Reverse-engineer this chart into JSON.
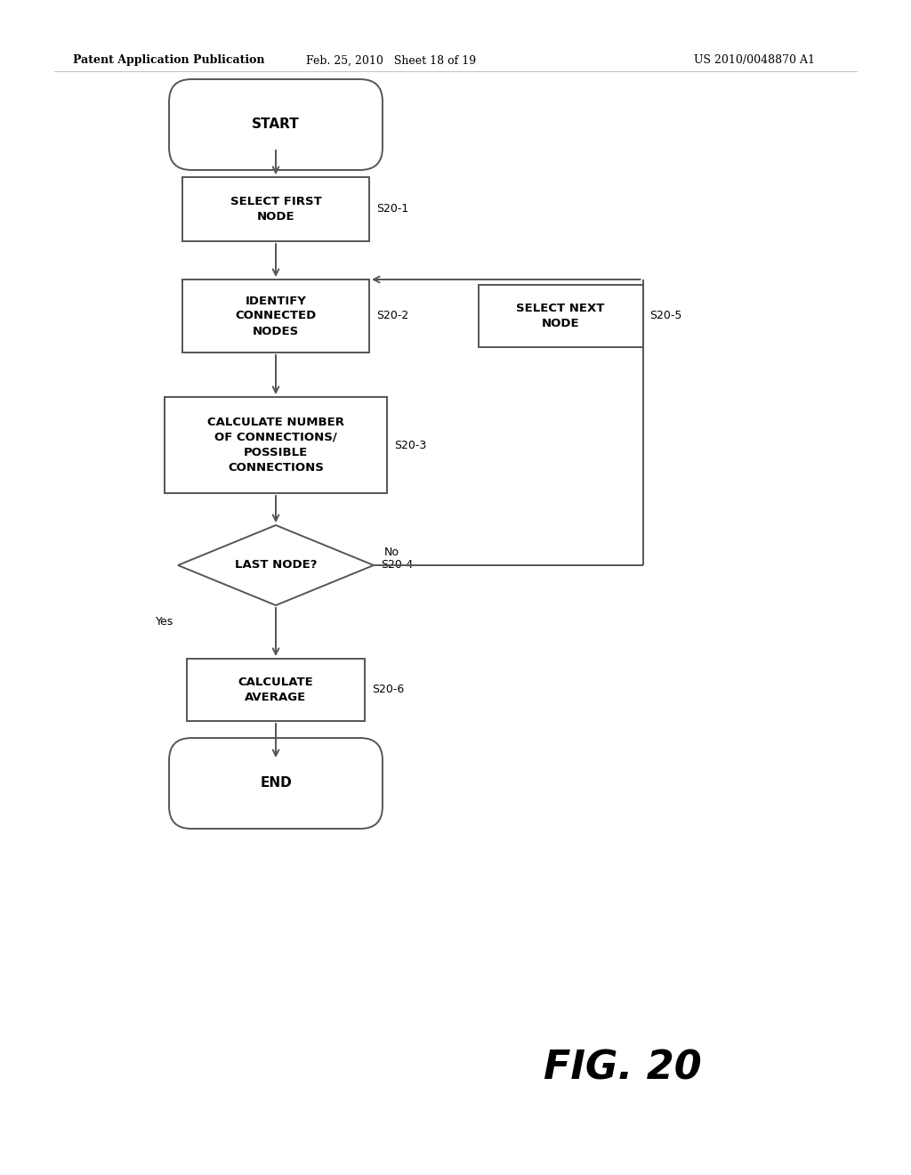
{
  "bg_color": "#ffffff",
  "header_left": "Patent Application Publication",
  "header_center": "Feb. 25, 2010   Sheet 18 of 19",
  "header_right": "US 2010/0048870 A1",
  "figure_label": "FIG. 20",
  "font_size_header": 9,
  "font_size_node": 9,
  "font_size_label": 9,
  "font_size_fig": 32
}
